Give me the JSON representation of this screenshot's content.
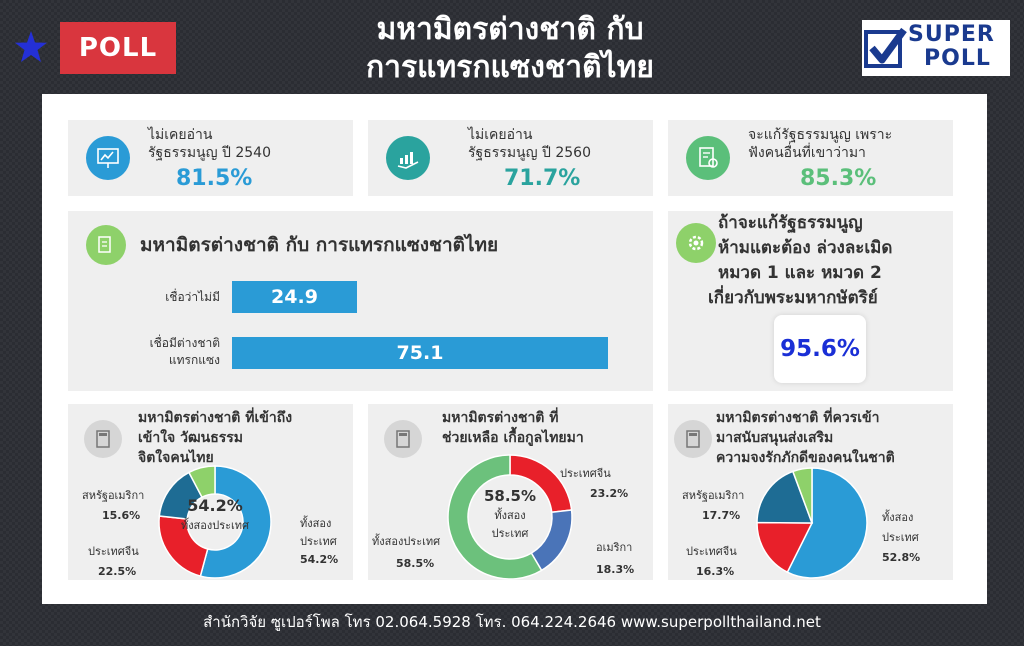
{
  "header": {
    "badge": "POLL",
    "title_line1": "มหามิตรต่างชาติ กับ",
    "title_line2": "การแทรกแซงชาติไทย",
    "logo_line1": "SUPER",
    "logo_line2": "POLL"
  },
  "stats": [
    {
      "label_line1": "ไม่เคยอ่าน",
      "label_line2": "รัฐธรรมนูญ ปี 2540",
      "value": "81.5%",
      "color": "#2a9bd6",
      "icon": "chart-board-icon"
    },
    {
      "label_line1": "ไม่เคยอ่าน",
      "label_line2": "รัฐธรรมนูญ ปี 2560",
      "value": "71.7%",
      "color": "#2aa39e",
      "icon": "growth-hand-icon"
    },
    {
      "label_line1": "จะแก้รัฐธรรมนูญ เพราะ",
      "label_line2": "ฟังคนอื่นที่เขาว่ามา",
      "value": "85.3%",
      "color": "#5bbf7a",
      "icon": "document-gear-icon"
    }
  ],
  "side": {
    "q_line1": "ถ้าจะแก้รัฐธรรมนูญ",
    "q_line2": "ห้ามแตะต้อง ล่วงละเมิด",
    "q_line3": "หมวด 1 และ หมวด 2",
    "q_line4": "เกี่ยวกับพระมหากษัตริย์",
    "value": "95.6%"
  },
  "chart_data": [
    {
      "type": "bar",
      "title": "มหามิตรต่างชาติ กับ การแทรกแซงชาติไทย",
      "categories": [
        "เชื่อว่าไม่มี",
        "เชื่อมีต่างชาติ แทรกแซง"
      ],
      "category_lines": [
        [
          "เชื่อว่าไม่มี"
        ],
        [
          "เชื่อมีต่างชาติ",
          "แทรกแซง"
        ]
      ],
      "values": [
        24.9,
        75.1
      ],
      "value_labels": [
        "24.9",
        "75.1"
      ],
      "orientation": "horizontal",
      "color": "#2a9bd6",
      "xlim": [
        0,
        100
      ]
    },
    {
      "type": "pie",
      "donut": true,
      "title_lines": [
        "มหามิตรต่างชาติ ที่เข้าถึง",
        "เข้าใจ วัฒนธรรม",
        "จิตใจคนไทย"
      ],
      "center_value": "54.2%",
      "center_label": "ทั้งสองประเทศ",
      "slices": [
        {
          "label_lines": [
            "ทั้งสอง",
            "ประเทศ"
          ],
          "value": 54.2,
          "value_label": "54.2%",
          "color": "#2a9bd6"
        },
        {
          "label_lines": [
            "ประเทศจีน"
          ],
          "value": 22.5,
          "value_label": "22.5%",
          "color": "#e8202a"
        },
        {
          "label_lines": [
            "สหรัฐอเมริกา"
          ],
          "value": 15.6,
          "value_label": "15.6%",
          "color": "#1e6c94"
        },
        {
          "label_lines": [],
          "value": 7.7,
          "value_label": "",
          "color": "#8ed16a"
        }
      ]
    },
    {
      "type": "pie",
      "donut": true,
      "title_lines": [
        "มหามิตรต่างชาติ ที่",
        "ช่วยเหลือ เกื้อกูลไทยมา"
      ],
      "center_value": "58.5%",
      "center_label_lines": [
        "ทั้งสอง",
        "ประเทศ"
      ],
      "slices": [
        {
          "label_lines": [
            "ประเทศจีน"
          ],
          "value": 23.2,
          "value_label": "23.2%",
          "color": "#e8202a"
        },
        {
          "label_lines": [
            "อเมริกา"
          ],
          "value": 18.3,
          "value_label": "18.3%",
          "color": "#4a74b8"
        },
        {
          "label_lines": [
            "ทั้งสองประเทศ"
          ],
          "value": 58.5,
          "value_label": "58.5%",
          "color": "#6cc17c"
        }
      ]
    },
    {
      "type": "pie",
      "donut": false,
      "title_lines": [
        "มหามิตรต่างชาติ ที่ควรเข้า",
        "มาสนับสนุนส่งเสริม",
        "ความจงรักภักดีของคนในชาติ"
      ],
      "slices": [
        {
          "label_lines": [
            "ทั้งสอง",
            "ประเทศ"
          ],
          "value": 52.8,
          "value_label": "52.8%",
          "color": "#2a9bd6"
        },
        {
          "label_lines": [
            "ประเทศจีน"
          ],
          "value": 16.3,
          "value_label": "16.3%",
          "color": "#e8202a"
        },
        {
          "label_lines": [
            "สหรัฐอเมริกา"
          ],
          "value": 17.7,
          "value_label": "17.7%",
          "color": "#1e6c94"
        },
        {
          "label_lines": [],
          "value": 5.2,
          "value_label": "",
          "color": "#8ed16a"
        }
      ]
    }
  ],
  "footer": "สำนักวิจัย ซูเปอร์โพล โทร 02.064.5928  โทร. 064.224.2646 www.superpollthailand.net"
}
